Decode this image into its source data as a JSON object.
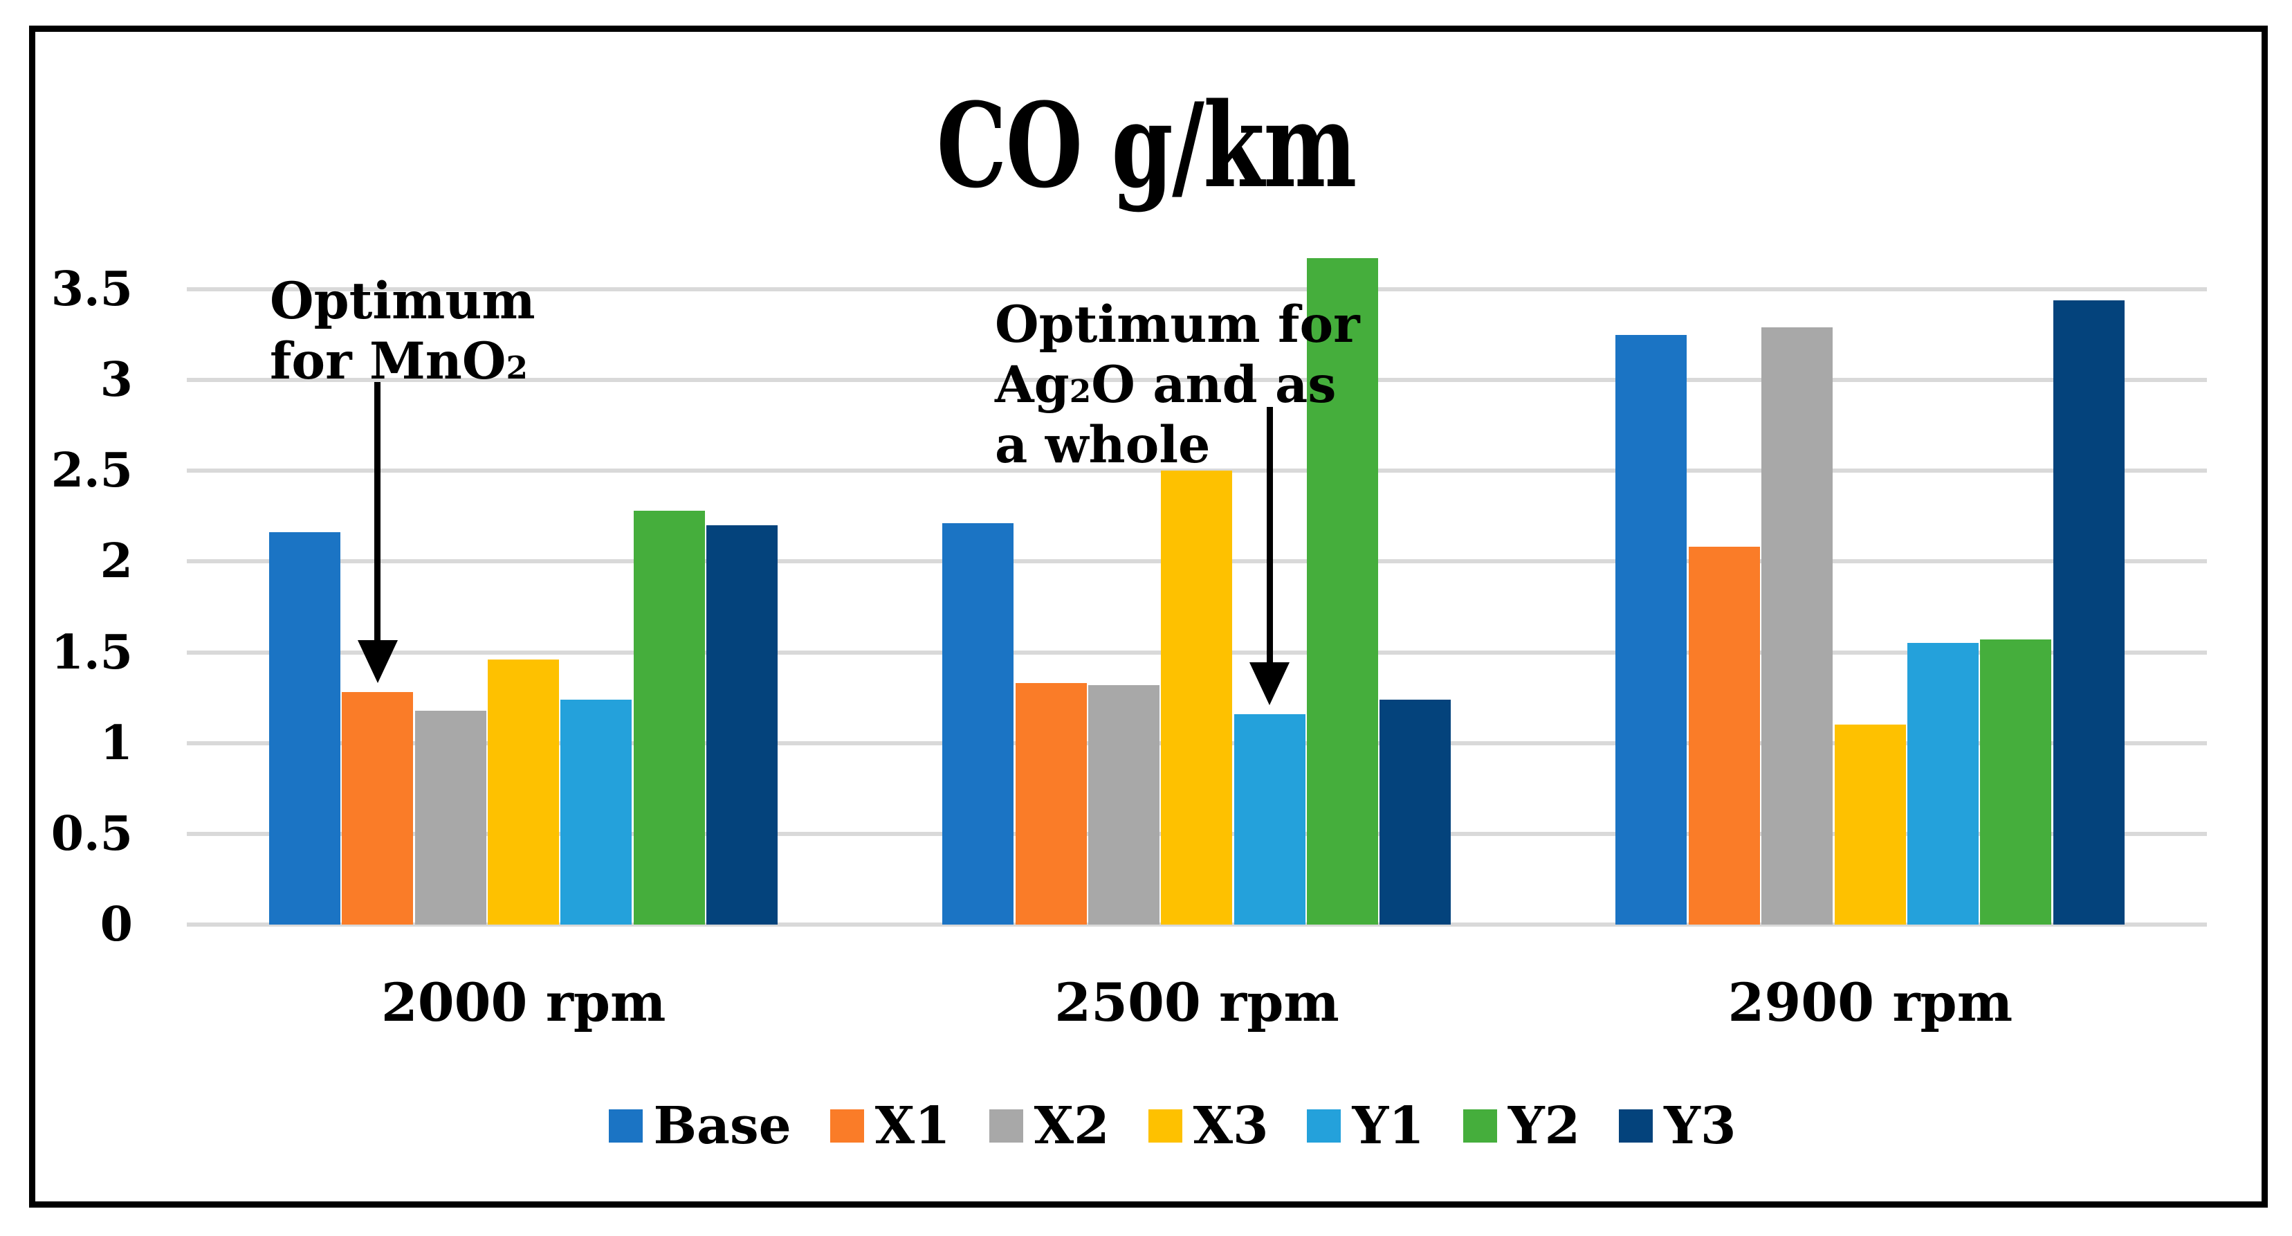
{
  "chart_data": {
    "type": "bar",
    "title": "CO g/km",
    "categories": [
      "2000 rpm",
      "2500 rpm",
      "2900 rpm"
    ],
    "series": [
      {
        "name": "Base",
        "color": "#1B74C4",
        "values": [
          2.16,
          2.21,
          3.25
        ]
      },
      {
        "name": "X1",
        "color": "#FA7C28",
        "values": [
          1.28,
          1.33,
          2.08
        ]
      },
      {
        "name": "X2",
        "color": "#A8A8A8",
        "values": [
          1.18,
          1.32,
          3.29
        ]
      },
      {
        "name": "X3",
        "color": "#FEC100",
        "values": [
          1.46,
          2.5,
          1.1
        ]
      },
      {
        "name": "Y1",
        "color": "#24A1DB",
        "values": [
          1.24,
          1.16,
          1.55
        ]
      },
      {
        "name": "Y2",
        "color": "#45AE3C",
        "values": [
          2.28,
          3.67,
          1.57
        ]
      },
      {
        "name": "Y3",
        "color": "#04437C",
        "values": [
          2.2,
          1.24,
          3.44
        ]
      }
    ],
    "ylim": [
      0,
      3.72
    ],
    "yticks": [
      0,
      0.5,
      1,
      1.5,
      2,
      2.5,
      3,
      3.5
    ],
    "ytick_labels": [
      "0",
      "0.5",
      "1",
      "1.5",
      "2",
      "2.5",
      "3",
      "3.5"
    ],
    "grid": true,
    "gridline_color": "#D9D9D9",
    "legend_position": "bottom",
    "annotations": [
      {
        "lines": [
          "Optimum",
          "for MnO₂"
        ],
        "points_to": {
          "category": "2000 rpm",
          "series": "X1"
        },
        "box": {
          "left": 390,
          "top": 392
        },
        "arrow_top": 552
      },
      {
        "lines": [
          "Optimum for",
          "Ag₂O and as",
          "a whole"
        ],
        "points_to": {
          "category": "2500 rpm",
          "series": "Y1"
        },
        "box": {
          "left": 1438,
          "top": 426
        },
        "arrow_top": 588
      }
    ]
  }
}
